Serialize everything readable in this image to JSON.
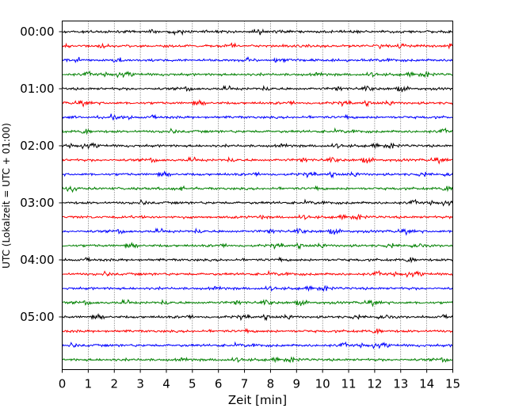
{
  "chart_data": {
    "type": "line",
    "title": "",
    "xlabel": "Zeit  [min]",
    "ylabel": "UTC (Lokalzeit = UTC + 01:00)",
    "xlim": [
      0,
      15
    ],
    "x_ticks": [
      "0",
      "1",
      "2",
      "3",
      "4",
      "5",
      "6",
      "7",
      "8",
      "9",
      "10",
      "11",
      "12",
      "13",
      "14",
      "15"
    ],
    "y_ticks": [
      "00:00",
      "01:00",
      "02:00",
      "03:00",
      "04:00",
      "05:00"
    ],
    "y_range_hours": [
      0,
      6
    ],
    "trace_interval_minutes": 15,
    "trace_count": 24,
    "trace_colors": [
      "#000000",
      "#ff0000",
      "#0000ff",
      "#008000"
    ],
    "vertical_grid": "dotted",
    "legend": "none"
  }
}
